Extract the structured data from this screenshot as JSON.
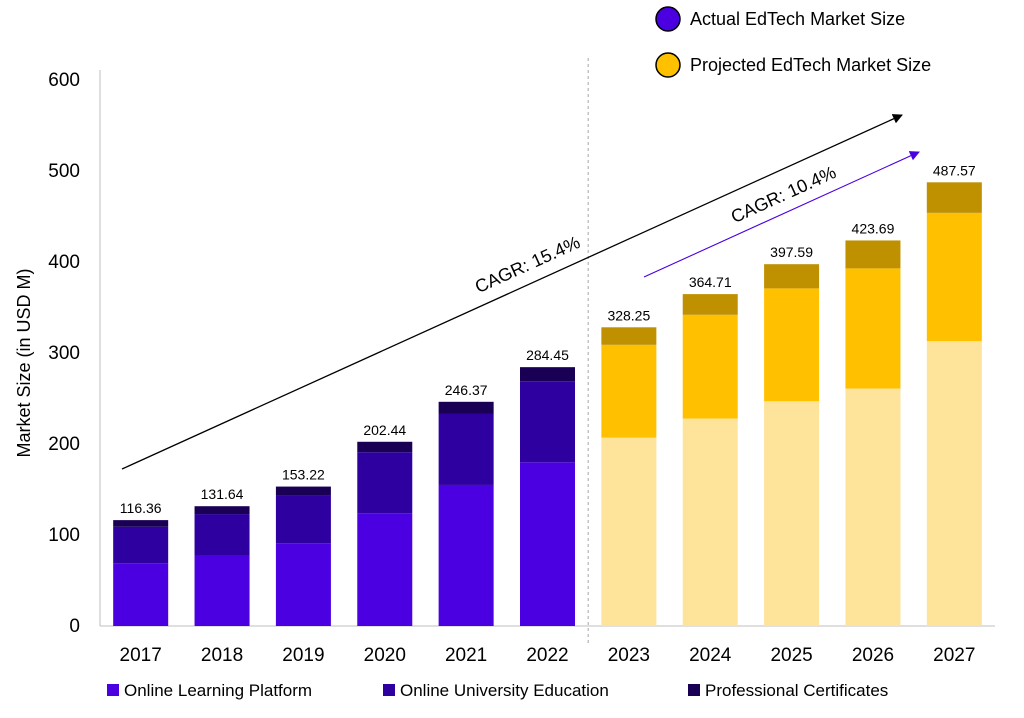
{
  "chart_data": {
    "type": "bar",
    "stacked": true,
    "ylabel": "Market Size (in USD M)",
    "ylim": [
      0,
      600
    ],
    "yticks": [
      0,
      100,
      200,
      300,
      400,
      500,
      600
    ],
    "grid": false,
    "categories": [
      "2017",
      "2018",
      "2019",
      "2020",
      "2021",
      "2022",
      "2023",
      "2024",
      "2025",
      "2026",
      "2027"
    ],
    "projected_from_index": 6,
    "totals": [
      116.36,
      131.64,
      153.22,
      202.44,
      246.37,
      284.45,
      328.25,
      364.71,
      397.59,
      423.69,
      487.57
    ],
    "total_labels": [
      "116.36",
      "131.64",
      "153.22",
      "202.44",
      "246.37",
      "284.45",
      "328.25",
      "364.71",
      "397.59",
      "423.69",
      "487.57"
    ],
    "series": [
      {
        "name": "Online Learning Platform",
        "values": [
          69,
          77,
          91,
          124,
          155,
          180,
          207,
          228,
          247,
          261,
          313
        ],
        "color": "#4a00e0",
        "projected_color": "#fde49a"
      },
      {
        "name": "Online University Education",
        "values": [
          40,
          46,
          52,
          67,
          78,
          89,
          102,
          114,
          124,
          132,
          141
        ],
        "color": "#2f00a0",
        "projected_color": "#ffc000"
      },
      {
        "name": "Professional Certificates",
        "values": [
          7.36,
          8.64,
          10.22,
          11.44,
          13.37,
          15.45,
          19.25,
          22.71,
          26.59,
          30.69,
          33.57
        ],
        "color": "#1a0055",
        "projected_color": "#bf9000"
      }
    ],
    "legend_top": [
      {
        "label": "Actual EdTech Market Size",
        "color": "#4a00e0"
      },
      {
        "label": "Projected EdTech Market Size",
        "color": "#ffc000"
      }
    ],
    "legend_placement": "top-right and bottom",
    "annotations": [
      {
        "text": "CAGR: 15.4%",
        "color": "#000000"
      },
      {
        "text": "CAGR: 10.4%",
        "color": "#4a00e0"
      }
    ]
  }
}
